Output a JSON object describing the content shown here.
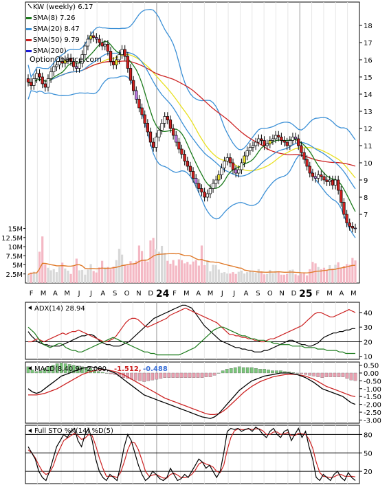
{
  "chart_data": [
    {
      "type": "candlestick",
      "panel": "price",
      "legend": [
        {
          "label": "KW (weekly) 6.17",
          "color": "#000000",
          "marker": "candle"
        },
        {
          "label": "SMA(8) 7.26",
          "color": "#1a7a1a",
          "marker": "line"
        },
        {
          "label": "SMA(20) 8.47",
          "color": "#3a8fd6",
          "marker": "line"
        },
        {
          "label": "SMA(50) 9.79",
          "color": "#cc2222",
          "marker": "line"
        },
        {
          "label": "SMA(200)",
          "color": "#1a1ad6",
          "marker": "line"
        }
      ],
      "watermark": "OptionChance.com",
      "ylim": [
        6,
        18.8
      ],
      "yticks": [
        7,
        8,
        9,
        10,
        11,
        12,
        13,
        14,
        15,
        16,
        17,
        18
      ],
      "x_tick_labels": [
        "F",
        "M",
        "A",
        "M",
        "J",
        "J",
        "A",
        "S",
        "O",
        "N",
        "D",
        "24",
        "F",
        "M",
        "A",
        "M",
        "J",
        "J",
        "A",
        "S",
        "O",
        "N",
        "D",
        "25",
        "F",
        "M",
        "A",
        "M"
      ],
      "close": [
        14.7,
        14.5,
        14.9,
        15.2,
        15.0,
        14.6,
        14.4,
        14.9,
        15.3,
        15.6,
        15.7,
        15.9,
        15.8,
        16.0,
        16.1,
        15.9,
        15.6,
        15.5,
        15.8,
        16.3,
        16.8,
        17.2,
        17.4,
        17.3,
        17.2,
        17.0,
        16.8,
        16.9,
        16.5,
        15.9,
        15.7,
        16.0,
        16.3,
        16.6,
        16.2,
        15.5,
        14.8,
        14.2,
        13.7,
        13.2,
        12.8,
        12.3,
        11.8,
        11.2,
        10.9,
        11.5,
        11.9,
        12.3,
        12.7,
        12.5,
        12.0,
        11.6,
        11.2,
        10.8,
        10.5,
        10.1,
        9.8,
        9.5,
        9.1,
        8.8,
        8.5,
        8.3,
        8.0,
        8.2,
        8.5,
        8.8,
        9.0,
        9.3,
        9.7,
        10.1,
        10.3,
        10.0,
        9.6,
        9.4,
        9.6,
        10.0,
        10.4,
        10.7,
        10.9,
        11.0,
        11.2,
        11.4,
        11.3,
        11.0,
        11.1,
        11.3,
        11.4,
        11.6,
        11.5,
        11.3,
        11.2,
        11.0,
        11.3,
        11.5,
        11.4,
        11.0,
        10.6,
        10.2,
        9.8,
        9.4,
        9.2,
        9.1,
        9.3,
        9.2,
        9.0,
        8.9,
        9.0,
        8.7,
        9.0,
        8.4,
        7.7,
        7.0,
        6.5,
        6.3,
        6.2,
        6.17
      ],
      "volume_panel": {
        "yticks_labels": [
          "15M",
          "12.5M",
          "10M",
          "7.5M",
          "5M",
          "2.5M"
        ],
        "yticks": [
          15,
          12.5,
          10,
          7.5,
          5,
          2.5
        ],
        "ylim": [
          0,
          17
        ],
        "volume_m": [
          2.4,
          2.9,
          3.1,
          2.7,
          8.6,
          12.8,
          5.1,
          4.2,
          3.5,
          3.8,
          3.0,
          4.4,
          5.6,
          4.0,
          3.4,
          2.5,
          4.6,
          6.7,
          3.5,
          3.6,
          2.3,
          3.7,
          5.2,
          3.3,
          2.9,
          4.3,
          6.1,
          4.3,
          4.4,
          3.8,
          4.5,
          6.3,
          9.4,
          7.8,
          5.1,
          4.9,
          6.0,
          5.5,
          6.1,
          10.3,
          8.8,
          6.5,
          5.9,
          11.7,
          12.4,
          9.3,
          8.6,
          10.2,
          8.3,
          6.1,
          5.3,
          6.3,
          4.8,
          6.5,
          6.3,
          5.4,
          5.8,
          5.1,
          5.9,
          6.3,
          4.8,
          10.3,
          4.9,
          6.2,
          3.2,
          5.0,
          4.9,
          3.7,
          2.8,
          3.0,
          2.6,
          2.6,
          3.0,
          2.5,
          3.1,
          3.4,
          2.6,
          3.0,
          3.5,
          3.3,
          2.8,
          3.8,
          3.2,
          2.4,
          2.5,
          3.6,
          2.7,
          3.3,
          3.1,
          2.3,
          2.3,
          2.5,
          3.6,
          3.7,
          2.4,
          2.1,
          2.6,
          2.8,
          2.1,
          3.8,
          5.8,
          5.4,
          4.4,
          3.8,
          4.2,
          3.6,
          4.9,
          4.0,
          5.0,
          5.7,
          4.0,
          4.7,
          5.2,
          5.0,
          6.9,
          6.2
        ],
        "avg_color": "#e07a2a"
      }
    },
    {
      "type": "line",
      "panel": "adx",
      "legend_label": "ADX(14) 28.94",
      "yticks": [
        10,
        20,
        30,
        40
      ],
      "ylim": [
        8,
        47
      ],
      "hlines": [
        20
      ],
      "series": [
        {
          "name": "ADX",
          "color": "#000000",
          "values": [
            27,
            24,
            22,
            20,
            19,
            18,
            18,
            17,
            17,
            17,
            17,
            18,
            19,
            20,
            21,
            22,
            23,
            24,
            24,
            25,
            25,
            24,
            22,
            20,
            19,
            18,
            18,
            17,
            17,
            17,
            18,
            19,
            20,
            22,
            24,
            26,
            28,
            30,
            32,
            34,
            36,
            37,
            38,
            39,
            40,
            41,
            42,
            43,
            44,
            45,
            45,
            44,
            43,
            40,
            37,
            34,
            31,
            29,
            27,
            25,
            23,
            21,
            20,
            19,
            18,
            17,
            16,
            16,
            15,
            15,
            14,
            14,
            13,
            13,
            13,
            14,
            14,
            15,
            16,
            17,
            18,
            19,
            20,
            21,
            21,
            20,
            19,
            18,
            18,
            17,
            17,
            18,
            19,
            21,
            23,
            24,
            25,
            26,
            26,
            27,
            27,
            28,
            28,
            29,
            29
          ]
        },
        {
          "name": "+DI",
          "color": "#cc2222",
          "values": [
            20,
            20,
            21,
            22,
            21,
            20,
            21,
            22,
            23,
            24,
            25,
            26,
            25,
            26,
            27,
            27,
            28,
            27,
            26,
            25,
            24,
            23,
            22,
            21,
            20,
            20,
            21,
            22,
            24,
            27,
            30,
            33,
            35,
            36,
            36,
            35,
            33,
            31,
            30,
            31,
            32,
            33,
            34,
            35,
            36,
            38,
            39,
            40,
            41,
            42,
            43,
            42,
            41,
            40,
            39,
            38,
            37,
            36,
            35,
            34,
            33,
            31,
            29,
            27,
            25,
            25,
            24,
            24,
            23,
            23,
            22,
            22,
            21,
            21,
            20,
            20,
            21,
            22,
            22,
            23,
            24,
            25,
            26,
            27,
            28,
            29,
            30,
            31,
            33,
            35,
            37,
            39,
            40,
            40,
            39,
            38,
            37,
            37,
            38,
            39,
            40,
            41,
            42,
            41,
            40
          ]
        },
        {
          "name": "-DI",
          "color": "#1a7a1a",
          "values": [
            30,
            28,
            26,
            23,
            20,
            18,
            17,
            16,
            17,
            18,
            19,
            18,
            16,
            15,
            14,
            14,
            13,
            13,
            14,
            15,
            16,
            17,
            18,
            19,
            20,
            21,
            22,
            23,
            22,
            21,
            20,
            19,
            18,
            17,
            16,
            15,
            14,
            13,
            13,
            12,
            12,
            11,
            11,
            11,
            11,
            11,
            11,
            11,
            11,
            12,
            13,
            14,
            15,
            16,
            18,
            20,
            22,
            24,
            26,
            28,
            29,
            30,
            30,
            29,
            28,
            27,
            26,
            25,
            24,
            24,
            23,
            22,
            22,
            21,
            21,
            21,
            20,
            20,
            19,
            19,
            18,
            18,
            18,
            18,
            17,
            17,
            17,
            17,
            16,
            16,
            16,
            16,
            15,
            15,
            15,
            14,
            14,
            14,
            14,
            13,
            13,
            12,
            12,
            12,
            12
          ]
        }
      ]
    },
    {
      "type": "line",
      "panel": "macd",
      "legend_label": "MACD(8,40,9) -2.000,",
      "legend_values": [
        {
          "text": "-1.512,",
          "color": "#cc2222"
        },
        {
          "text": "-0.488",
          "color": "#3a6fd6"
        }
      ],
      "yticks": [
        0.5,
        0.0,
        -0.5,
        -1.0,
        -1.5,
        -2.0,
        -2.5,
        -3.0
      ],
      "ytick_labels": [
        "0.50",
        "0.00",
        "-0.50",
        "-1.00",
        "-1.50",
        "-2.00",
        "-2.50",
        "-3.00"
      ],
      "ylim": [
        -3.2,
        0.7
      ],
      "series": [
        {
          "name": "MACD",
          "color": "#000000",
          "values": [
            -1.0,
            -1.2,
            -1.3,
            -1.2,
            -1.0,
            -0.8,
            -0.6,
            -0.4,
            -0.2,
            -0.1,
            0.0,
            0.1,
            0.2,
            0.3,
            0.35,
            0.4,
            0.35,
            0.3,
            0.25,
            0.2,
            0.1,
            0.0,
            -0.2,
            -0.4,
            -0.6,
            -0.8,
            -1.0,
            -1.2,
            -1.4,
            -1.5,
            -1.6,
            -1.7,
            -1.8,
            -1.9,
            -2.0,
            -2.1,
            -2.2,
            -2.3,
            -2.4,
            -2.5,
            -2.6,
            -2.7,
            -2.8,
            -2.85,
            -2.9,
            -2.8,
            -2.6,
            -2.3,
            -2.0,
            -1.7,
            -1.4,
            -1.1,
            -0.9,
            -0.7,
            -0.5,
            -0.4,
            -0.3,
            -0.2,
            -0.15,
            -0.1,
            -0.05,
            0.0,
            0.0,
            0.0,
            -0.05,
            -0.1,
            -0.2,
            -0.3,
            -0.45,
            -0.6,
            -0.8,
            -1.0,
            -1.1,
            -1.2,
            -1.3,
            -1.4,
            -1.5,
            -1.7,
            -1.9,
            -2.0
          ]
        },
        {
          "name": "Signal",
          "color": "#cc2222",
          "values": [
            -1.4,
            -1.4,
            -1.4,
            -1.35,
            -1.3,
            -1.2,
            -1.1,
            -1.0,
            -0.85,
            -0.7,
            -0.55,
            -0.4,
            -0.25,
            -0.1,
            0.0,
            0.1,
            0.15,
            0.2,
            0.2,
            0.2,
            0.15,
            0.1,
            0.0,
            -0.1,
            -0.25,
            -0.4,
            -0.55,
            -0.7,
            -0.85,
            -1.0,
            -1.15,
            -1.3,
            -1.45,
            -1.6,
            -1.7,
            -1.8,
            -1.9,
            -2.0,
            -2.1,
            -2.2,
            -2.3,
            -2.4,
            -2.5,
            -2.6,
            -2.65,
            -2.65,
            -2.6,
            -2.45,
            -2.25,
            -2.0,
            -1.75,
            -1.5,
            -1.25,
            -1.05,
            -0.85,
            -0.7,
            -0.55,
            -0.45,
            -0.35,
            -0.25,
            -0.2,
            -0.15,
            -0.1,
            -0.08,
            -0.08,
            -0.1,
            -0.15,
            -0.2,
            -0.3,
            -0.4,
            -0.55,
            -0.7,
            -0.85,
            -0.95,
            -1.05,
            -1.15,
            -1.25,
            -1.35,
            -1.45,
            -1.51
          ]
        },
        {
          "name": "Histogram",
          "color": "#7bc67b",
          "neg_color": "#e8a0b0",
          "values": [
            0.4,
            0.2,
            0.1,
            0.15,
            0.3,
            0.4,
            0.5,
            0.6,
            0.65,
            0.6,
            0.55,
            0.5,
            0.45,
            0.4,
            0.35,
            0.3,
            0.2,
            0.1,
            0.05,
            0.0,
            -0.05,
            -0.1,
            -0.2,
            -0.3,
            -0.35,
            -0.4,
            -0.45,
            -0.5,
            -0.55,
            -0.5,
            -0.45,
            -0.4,
            -0.35,
            -0.3,
            -0.3,
            -0.3,
            -0.3,
            -0.3,
            -0.3,
            -0.3,
            -0.3,
            -0.3,
            -0.3,
            -0.25,
            -0.25,
            -0.15,
            0.0,
            0.15,
            0.25,
            0.3,
            0.35,
            0.4,
            0.35,
            0.35,
            0.35,
            0.3,
            0.25,
            0.25,
            0.2,
            0.15,
            0.15,
            0.15,
            0.1,
            0.08,
            0.03,
            0.0,
            -0.05,
            -0.1,
            -0.15,
            -0.2,
            -0.25,
            -0.3,
            -0.25,
            -0.25,
            -0.25,
            -0.25,
            -0.25,
            -0.35,
            -0.45,
            -0.49
          ]
        }
      ]
    },
    {
      "type": "line",
      "panel": "stochastic",
      "legend_label": "Full STO %K(14) %D(5)",
      "yticks": [
        20,
        50,
        80
      ],
      "ylim": [
        0,
        95
      ],
      "hlines": [
        20,
        50,
        80
      ],
      "series": [
        {
          "name": "%K",
          "color": "#000000",
          "values": [
            60,
            50,
            40,
            20,
            10,
            5,
            20,
            40,
            60,
            70,
            80,
            75,
            85,
            90,
            70,
            60,
            80,
            90,
            70,
            40,
            20,
            10,
            5,
            15,
            10,
            5,
            30,
            60,
            80,
            70,
            50,
            30,
            15,
            5,
            10,
            20,
            15,
            8,
            5,
            10,
            25,
            15,
            5,
            8,
            15,
            10,
            20,
            30,
            40,
            35,
            25,
            30,
            20,
            10,
            20,
            50,
            85,
            90,
            88,
            90,
            85,
            88,
            90,
            85,
            92,
            88,
            80,
            75,
            85,
            90,
            80,
            75,
            85,
            88,
            70,
            80,
            90,
            75,
            85,
            60,
            40,
            10,
            5,
            15,
            10,
            5,
            15,
            20,
            10,
            5,
            18,
            10,
            5
          ]
        },
        {
          "name": "%D",
          "color": "#cc2222",
          "values": [
            55,
            50,
            42,
            30,
            20,
            15,
            18,
            28,
            45,
            58,
            70,
            74,
            78,
            82,
            78,
            72,
            74,
            80,
            78,
            62,
            42,
            25,
            12,
            12,
            12,
            10,
            18,
            35,
            55,
            68,
            66,
            55,
            38,
            20,
            12,
            14,
            15,
            12,
            9,
            9,
            15,
            17,
            14,
            10,
            10,
            11,
            15,
            22,
            32,
            35,
            32,
            30,
            27,
            20,
            18,
            30,
            55,
            75,
            86,
            89,
            88,
            88,
            89,
            88,
            89,
            89,
            86,
            80,
            80,
            84,
            84,
            80,
            81,
            83,
            78,
            78,
            82,
            81,
            80,
            72,
            58,
            35,
            18,
            12,
            11,
            10,
            11,
            14,
            15,
            12,
            12,
            12,
            11
          ]
        }
      ]
    }
  ]
}
